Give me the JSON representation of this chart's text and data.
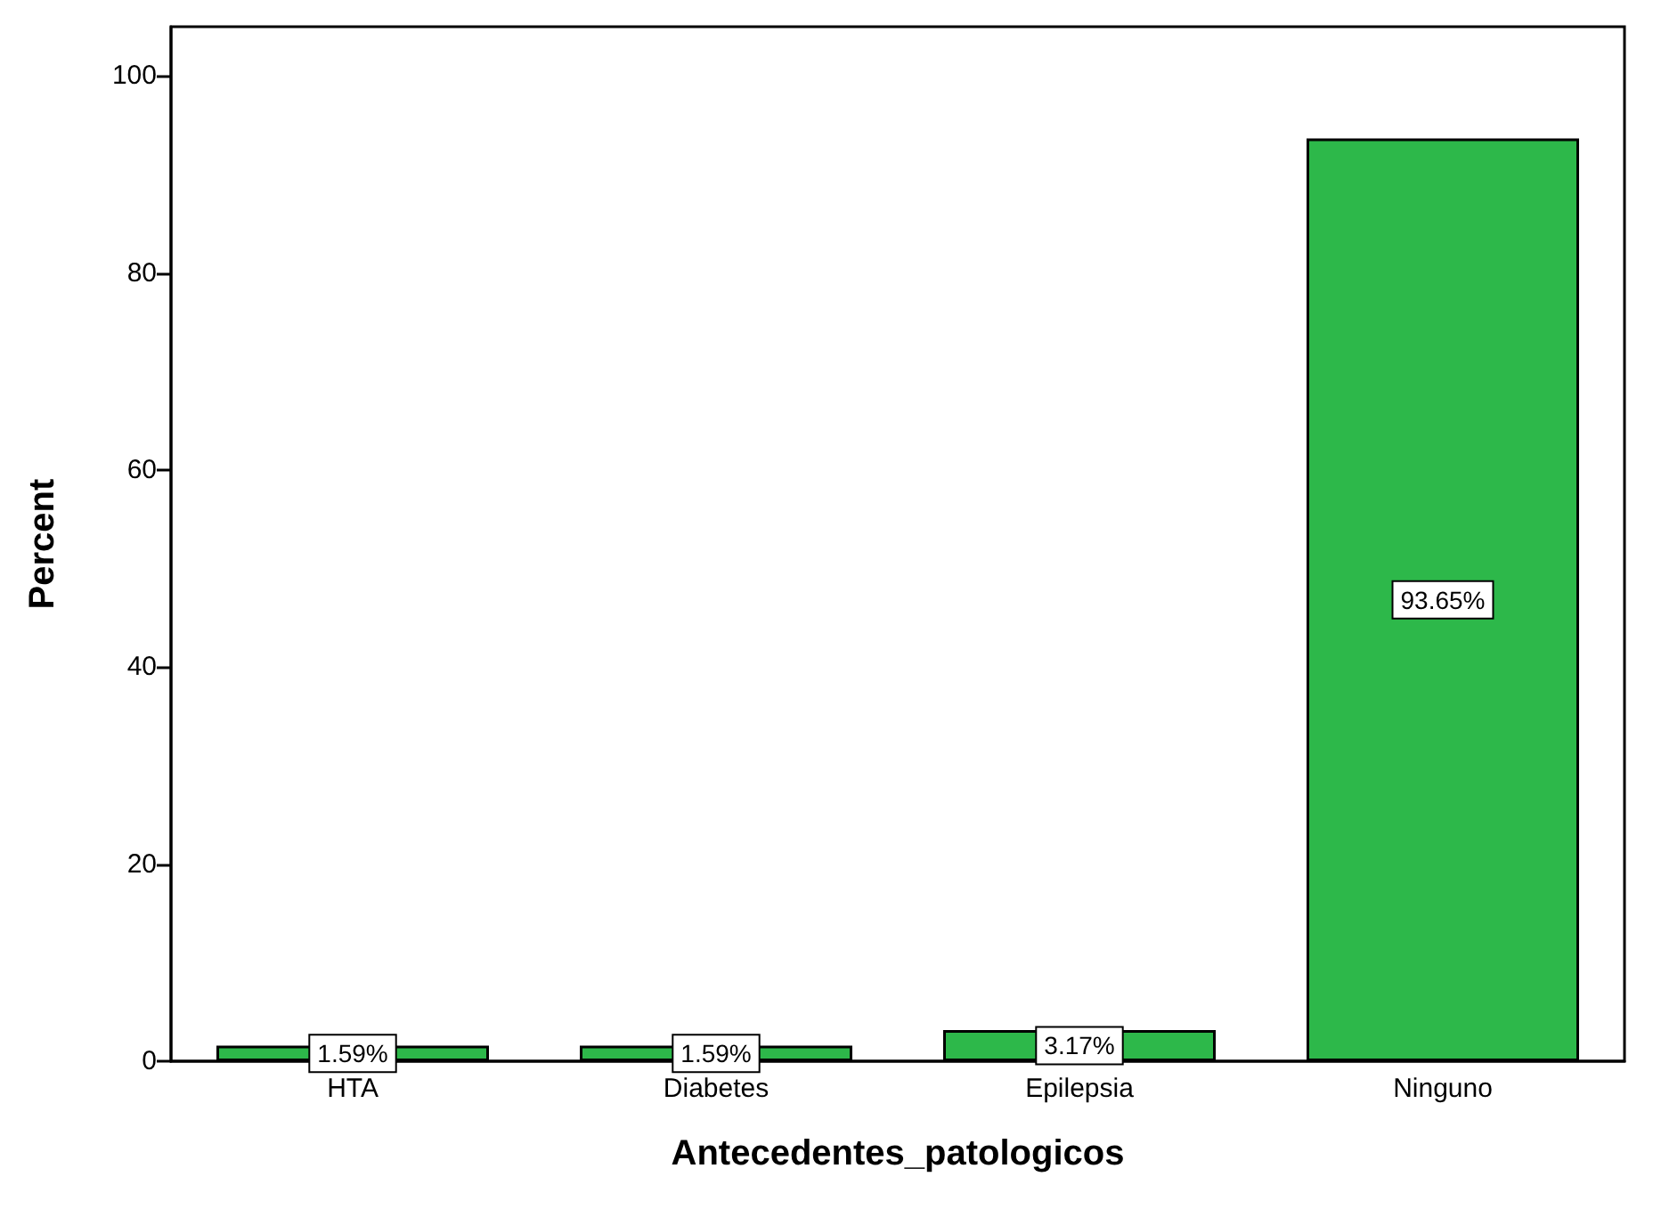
{
  "chart_data": {
    "type": "bar",
    "xlabel": "Antecedentes_patologicos",
    "ylabel": "Percent",
    "categories": [
      "HTA",
      "Diabetes",
      "Epilepsia",
      "Ninguno"
    ],
    "values": [
      1.59,
      1.59,
      3.17,
      93.65
    ],
    "value_labels": [
      "1.59%",
      "1.59%",
      "3.17%",
      "93.65%"
    ],
    "color": "#2db84a",
    "ylim": [
      0,
      105
    ],
    "yticks": [
      0,
      20,
      40,
      60,
      80,
      100
    ]
  }
}
